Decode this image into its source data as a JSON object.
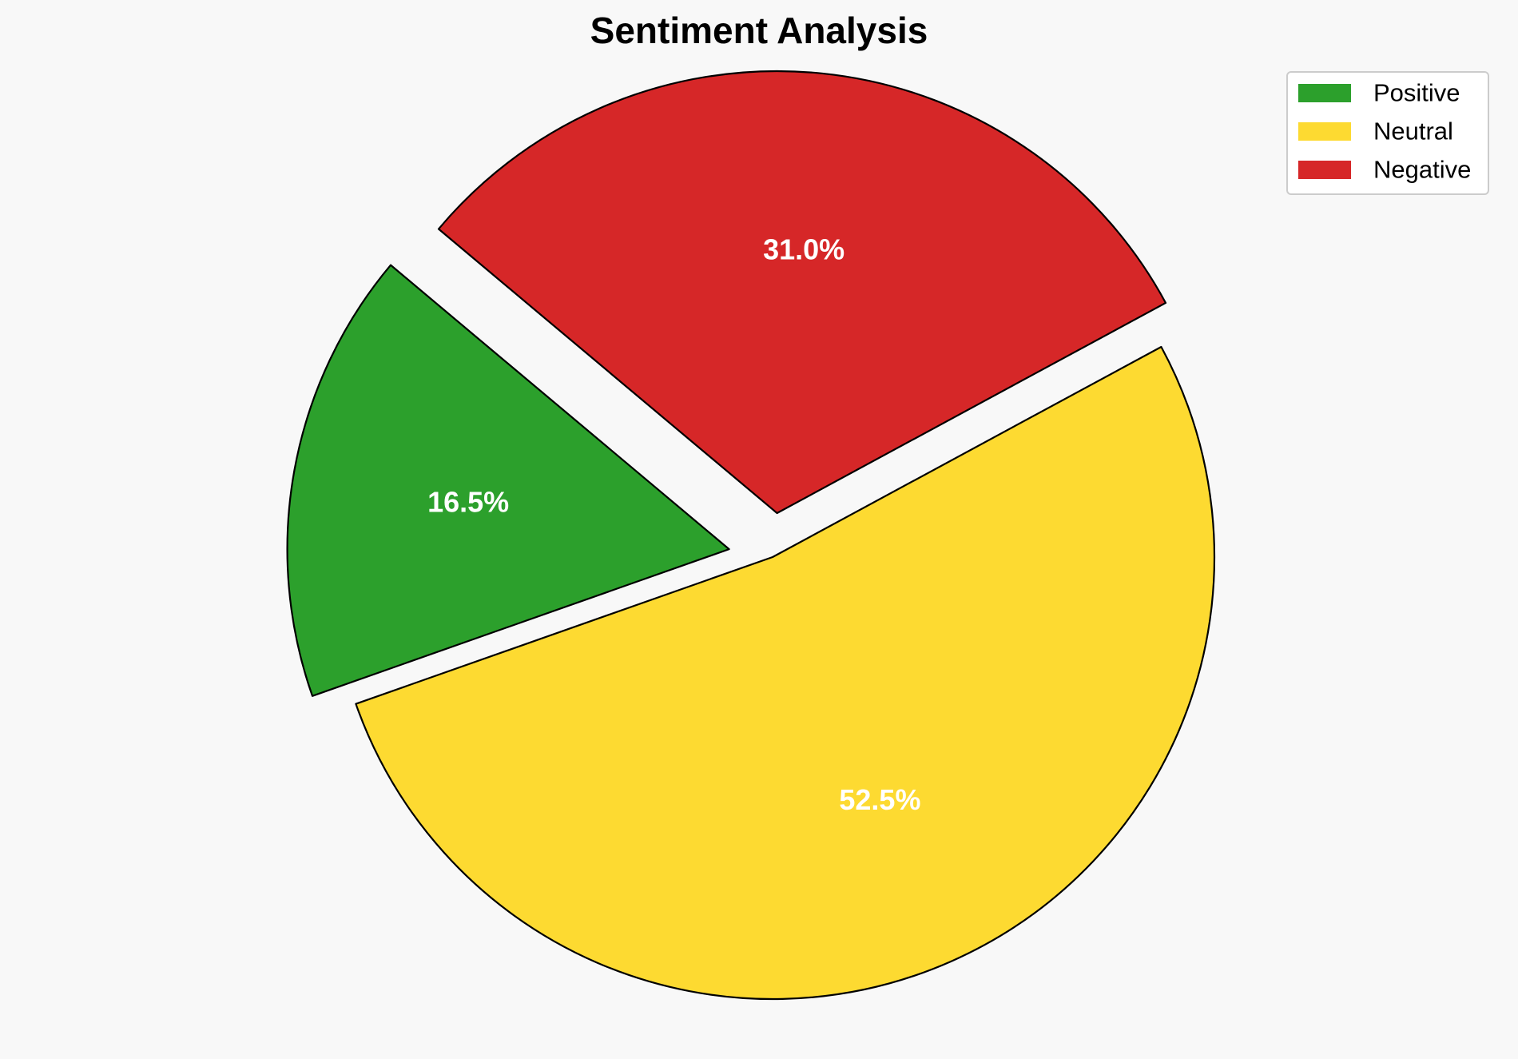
{
  "chart_data": {
    "type": "pie",
    "title": "Sentiment Analysis",
    "slices": [
      {
        "label": "Positive",
        "value": 16.5,
        "display": "16.5%",
        "color": "#2ca02c"
      },
      {
        "label": "Neutral",
        "value": 52.5,
        "display": "52.5%",
        "color": "#fdda31"
      },
      {
        "label": "Negative",
        "value": 31.0,
        "display": "31.0%",
        "color": "#d62728"
      }
    ],
    "exploded": [
      "Positive",
      "Negative"
    ],
    "legend": {
      "placement": "top-right",
      "entries": [
        "Positive",
        "Neutral",
        "Negative"
      ]
    }
  }
}
